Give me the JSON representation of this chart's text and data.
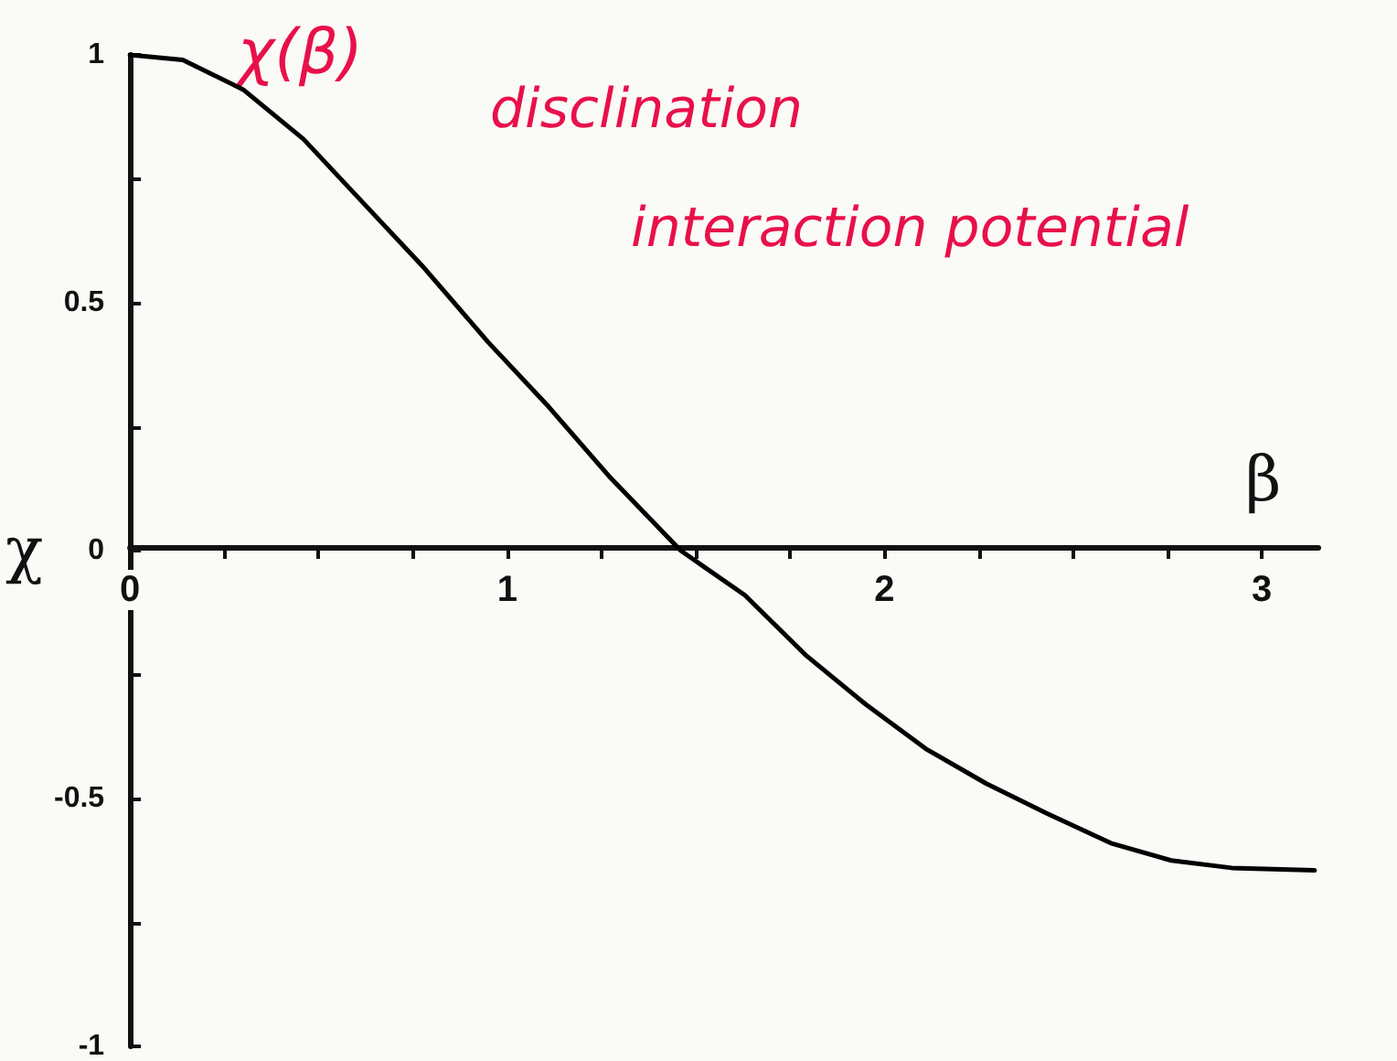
{
  "chart_data": {
    "type": "line",
    "xlabel": "β",
    "ylabel": "χ",
    "color": "#000000",
    "marker": "none",
    "line_style": "solid",
    "annotations": [
      "χ(β)",
      "disclination",
      "interaction potential"
    ],
    "x": [
      0,
      0.14,
      0.3,
      0.46,
      0.62,
      0.78,
      0.95,
      1.11,
      1.27,
      1.46,
      1.63,
      1.79,
      1.95,
      2.11,
      2.27,
      2.43,
      2.6,
      2.76,
      2.92,
      3.14
    ],
    "values": [
      1,
      0.99,
      0.93,
      0.83,
      0.7,
      0.57,
      0.42,
      0.29,
      0.15,
      0,
      -0.09,
      -0.21,
      -0.31,
      -0.4,
      -0.47,
      -0.53,
      -0.59,
      -0.625,
      -0.64,
      -0.645
    ],
    "xlim": [
      0,
      3.15
    ],
    "xticks": [
      0,
      {
        "value": 0.25,
        "label": null
      },
      {
        "value": 0.5,
        "label": null
      },
      {
        "value": 0.75,
        "label": null
      },
      1,
      {
        "value": 1.25,
        "label": null
      },
      {
        "value": 1.5,
        "label": null
      },
      {
        "value": 1.75,
        "label": null
      },
      2,
      {
        "value": 2.25,
        "label": null
      },
      {
        "value": 2.5,
        "label": null
      },
      {
        "value": 2.75,
        "label": null
      },
      3
    ],
    "ylim": [
      -1,
      1
    ],
    "yticks": [
      -1,
      {
        "value": -0.75,
        "label": null
      },
      -0.5,
      {
        "value": -0.25,
        "label": null
      },
      0,
      {
        "value": 0.25,
        "label": null
      },
      0.5,
      {
        "value": 0.75,
        "label": null
      },
      1
    ]
  }
}
